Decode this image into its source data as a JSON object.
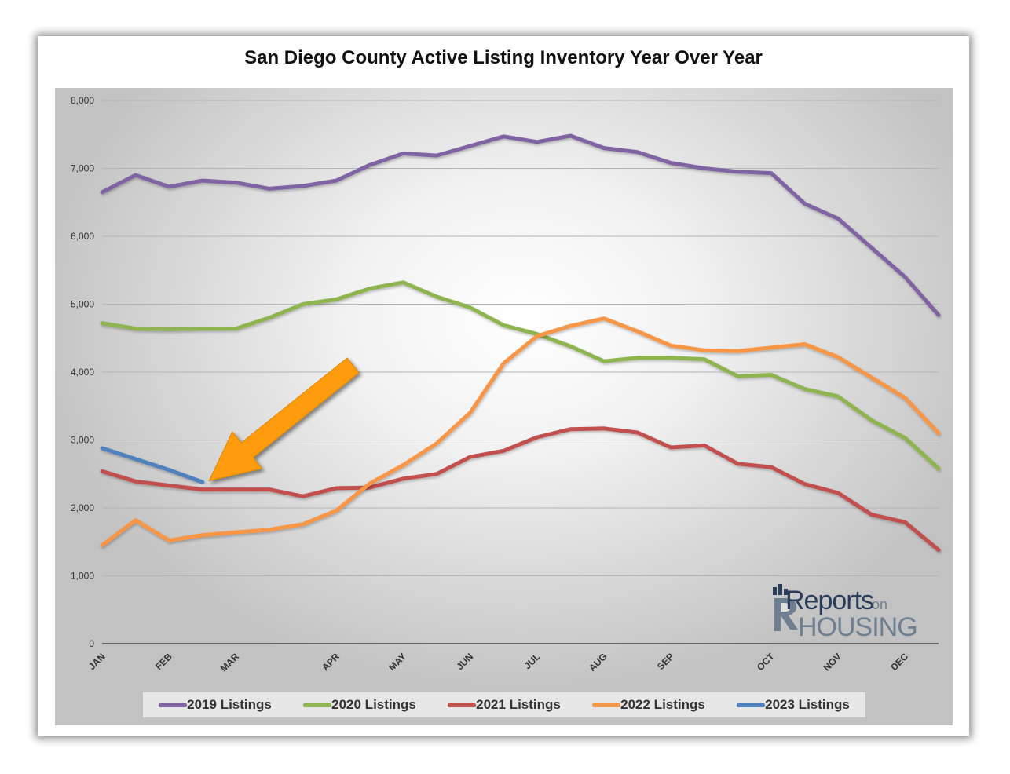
{
  "chart_data": {
    "type": "line",
    "title": "San Diego County Active Listing Inventory Year Over Year",
    "xlabel": "",
    "ylabel": "",
    "ylim": [
      0,
      8000
    ],
    "yticks": [
      "0",
      "1,000",
      "2,000",
      "3,000",
      "4,000",
      "5,000",
      "6,000",
      "7,000",
      "8,000"
    ],
    "ytick_values": [
      0,
      1000,
      2000,
      3000,
      4000,
      5000,
      6000,
      7000,
      8000
    ],
    "x_range": [
      0,
      25
    ],
    "month_labels": [
      {
        "label": "JAN",
        "x": 0
      },
      {
        "label": "FEB",
        "x": 2
      },
      {
        "label": "MAR",
        "x": 4
      },
      {
        "label": "APR",
        "x": 7
      },
      {
        "label": "MAY",
        "x": 9
      },
      {
        "label": "JUN",
        "x": 11
      },
      {
        "label": "JUL",
        "x": 13
      },
      {
        "label": "AUG",
        "x": 15
      },
      {
        "label": "SEP",
        "x": 17
      },
      {
        "label": "OCT",
        "x": 20
      },
      {
        "label": "NOV",
        "x": 22
      },
      {
        "label": "DEC",
        "x": 24
      }
    ],
    "grid": true,
    "legend": "bottom",
    "series": [
      {
        "name": "2019 Listings",
        "color": "#8064a2",
        "values": [
          6650,
          6900,
          6730,
          6820,
          6790,
          6700,
          6740,
          6820,
          7050,
          7220,
          7190,
          7330,
          7470,
          7390,
          7480,
          7300,
          7240,
          7080,
          7000,
          6950,
          6930,
          6480,
          6260,
          5830,
          5400,
          4840
        ]
      },
      {
        "name": "2020 Listings",
        "color": "#8eb450",
        "values": [
          4720,
          4640,
          4630,
          4640,
          4640,
          4800,
          5000,
          5070,
          5230,
          5320,
          5110,
          4950,
          4690,
          4560,
          4380,
          4160,
          4210,
          4210,
          4190,
          3940,
          3960,
          3750,
          3640,
          3290,
          3030,
          2580
        ]
      },
      {
        "name": "2021 Listings",
        "color": "#c0504d",
        "values": [
          2540,
          2390,
          2330,
          2270,
          2270,
          2270,
          2170,
          2290,
          2300,
          2430,
          2500,
          2750,
          2840,
          3040,
          3160,
          3170,
          3110,
          2890,
          2920,
          2650,
          2600,
          2350,
          2220,
          1900,
          1790,
          1380
        ]
      },
      {
        "name": "2022 Listings",
        "color": "#f79646",
        "values": [
          1450,
          1820,
          1520,
          1600,
          1640,
          1680,
          1760,
          1960,
          2360,
          2630,
          2950,
          3400,
          4130,
          4530,
          4680,
          4790,
          4600,
          4390,
          4320,
          4310,
          4360,
          4410,
          4220,
          3920,
          3620,
          3100
        ]
      },
      {
        "name": "2023 Listings",
        "color": "#4f81bd",
        "values": [
          2880,
          2720,
          2560,
          2380
        ]
      }
    ]
  },
  "logo": {
    "reports": "Reports",
    "on": "on",
    "housing": "HOUSING"
  },
  "annotation": {
    "arrow_color": "#ff9c0f",
    "arrow_target": {
      "x": 3.2,
      "y": 2400
    },
    "arrow_tail": {
      "x": 7.5,
      "y": 4100
    }
  }
}
